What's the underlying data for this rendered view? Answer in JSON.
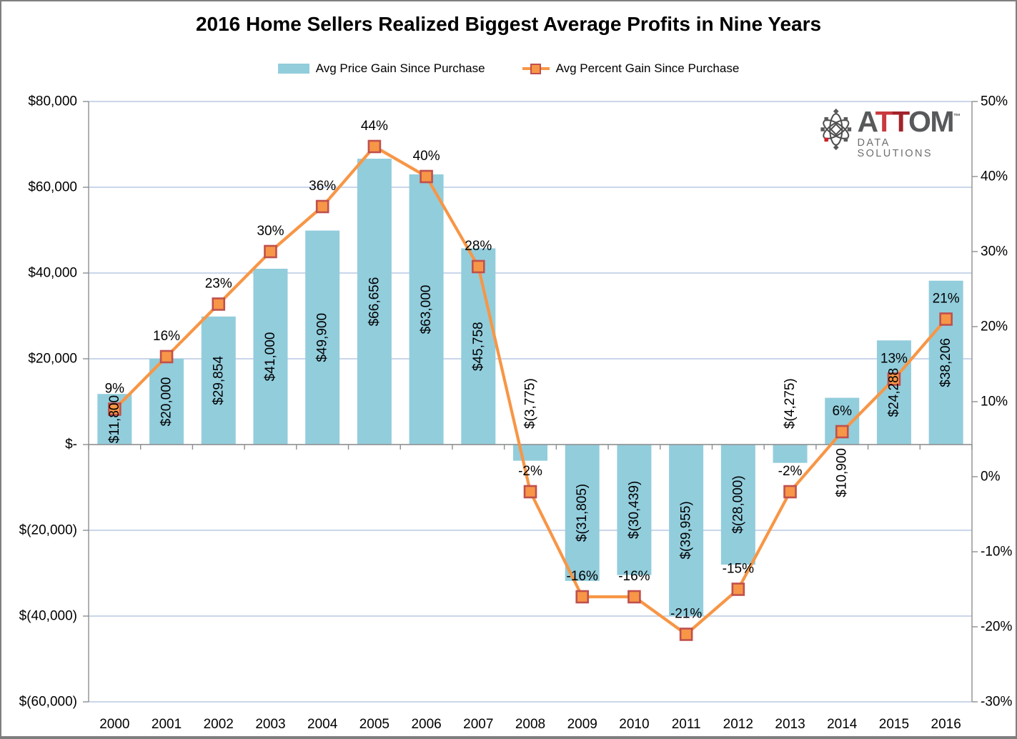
{
  "chart_data": {
    "type": "combo-bar-line",
    "title": "2016 Home Sellers Realized Biggest Average Profits in Nine Years",
    "categories": [
      "2000",
      "2001",
      "2002",
      "2003",
      "2004",
      "2005",
      "2006",
      "2007",
      "2008",
      "2009",
      "2010",
      "2011",
      "2012",
      "2013",
      "2014",
      "2015",
      "2016"
    ],
    "series": [
      {
        "name": "Avg Price Gain Since Purchase",
        "type": "bar",
        "axis": "left",
        "color": "#92CDDC",
        "values": [
          11800,
          20000,
          29854,
          41000,
          49900,
          66656,
          63000,
          45758,
          -3775,
          -31805,
          -30439,
          -39955,
          -28000,
          -4275,
          10900,
          24288,
          38206
        ],
        "labels": [
          "$11,800",
          "$20,000",
          "$29,854",
          "$41,000",
          "$49,900",
          "$66,656",
          "$63,000",
          "$45,758",
          "$(3,775)",
          "$(31,805)",
          "$(30,439)",
          "$(39,955)",
          "$(28,000)",
          "$(4,275)",
          "$10,900",
          "$24,288",
          "$38,206"
        ],
        "label_placement": [
          "in",
          "in",
          "in",
          "in",
          "in",
          "in",
          "in",
          "in",
          "above-axis",
          "in",
          "in",
          "in",
          "in",
          "above-axis",
          "below-axis",
          "in",
          "in"
        ]
      },
      {
        "name": "Avg Percent Gain Since Purchase",
        "type": "line",
        "axis": "right",
        "color": "#F79646",
        "marker": "square",
        "marker_fill": "#F79646",
        "marker_border": "#C0504D",
        "values": [
          9,
          16,
          23,
          30,
          36,
          44,
          40,
          28,
          -2,
          -16,
          -16,
          -21,
          -15,
          -2,
          6,
          13,
          21
        ],
        "labels": [
          "9%",
          "16%",
          "23%",
          "30%",
          "36%",
          "44%",
          "40%",
          "28%",
          "-2%",
          "-16%",
          "-16%",
          "-21%",
          "-15%",
          "-2%",
          "6%",
          "13%",
          "21%"
        ]
      }
    ],
    "y_left": {
      "min": -60000,
      "max": 80000,
      "step": 20000,
      "tick_labels": [
        "$80,000",
        "$60,000",
        "$40,000",
        "$20,000",
        "$-",
        "$(20,000)",
        "$(40,000)",
        "$(60,000)"
      ]
    },
    "y_right": {
      "min": -30,
      "max": 50,
      "step": 10,
      "tick_labels": [
        "50%",
        "40%",
        "30%",
        "20%",
        "10%",
        "0%",
        "-10%",
        "-20%",
        "-30%"
      ]
    },
    "grid": true,
    "grid_color": "#B9C9E3",
    "axis_color": "#8E8E8E",
    "text_color": "#000000",
    "legend_position": "top"
  },
  "legend": [
    {
      "label": "Avg Price Gain Since Purchase"
    },
    {
      "label": "Avg Percent Gain Since Purchase"
    }
  ],
  "logo": {
    "brand_a": "A",
    "brand_t1": "T",
    "brand_t2": "T",
    "brand_om": "OM",
    "tm": "™",
    "subtitle": "DATA SOLUTIONS",
    "gray": "#58595B",
    "red_light": "#C9393E",
    "red_dark": "#A2232B",
    "sub_gray": "#6D6E71",
    "icon_red": "#CB2026"
  }
}
